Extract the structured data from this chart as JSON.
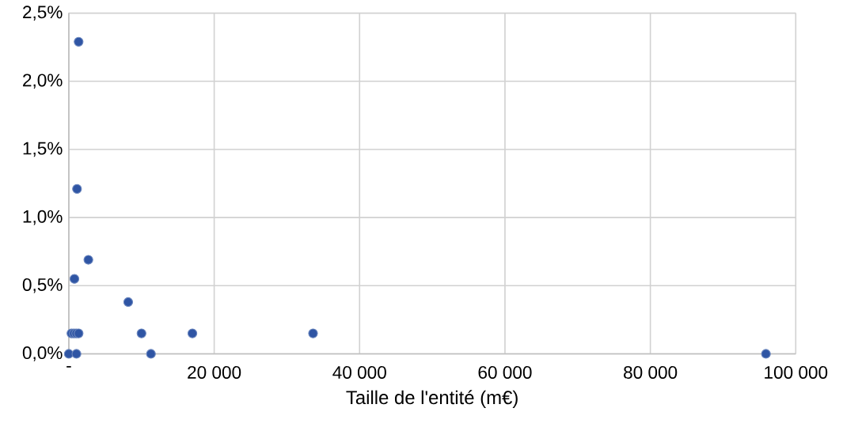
{
  "chart_data": {
    "type": "scatter",
    "xlabel": "Taille de l'entité (m€)",
    "x": [
      1350,
      1130,
      2690,
      770,
      8170,
      360,
      690,
      1020,
      1350,
      10000,
      17000,
      33600,
      0,
      1050,
      11300,
      95900
    ],
    "values": [
      2.29,
      1.21,
      0.69,
      0.55,
      0.38,
      0.15,
      0.15,
      0.15,
      0.15,
      0.15,
      0.15,
      0.15,
      0,
      0,
      0,
      0
    ],
    "color": "#2f55a4",
    "grid": true,
    "legend": false,
    "xlim": [
      0,
      100000
    ],
    "ylim": [
      0,
      2.5
    ],
    "xticks": [
      {
        "value": 0,
        "label": "-"
      },
      {
        "value": 20000,
        "label": "20 000"
      },
      {
        "value": 40000,
        "label": "40 000"
      },
      {
        "value": 60000,
        "label": "60 000"
      },
      {
        "value": 80000,
        "label": "80 000"
      },
      {
        "value": 100000,
        "label": "100 000"
      }
    ],
    "yticks": [
      {
        "value": 0,
        "label": "0,0%"
      },
      {
        "value": 0.5,
        "label": "0,5%"
      },
      {
        "value": 1,
        "label": "1,0%"
      },
      {
        "value": 1.5,
        "label": "1,5%"
      },
      {
        "value": 2,
        "label": "2,0%"
      },
      {
        "value": 2.5,
        "label": "2,5%"
      }
    ]
  }
}
